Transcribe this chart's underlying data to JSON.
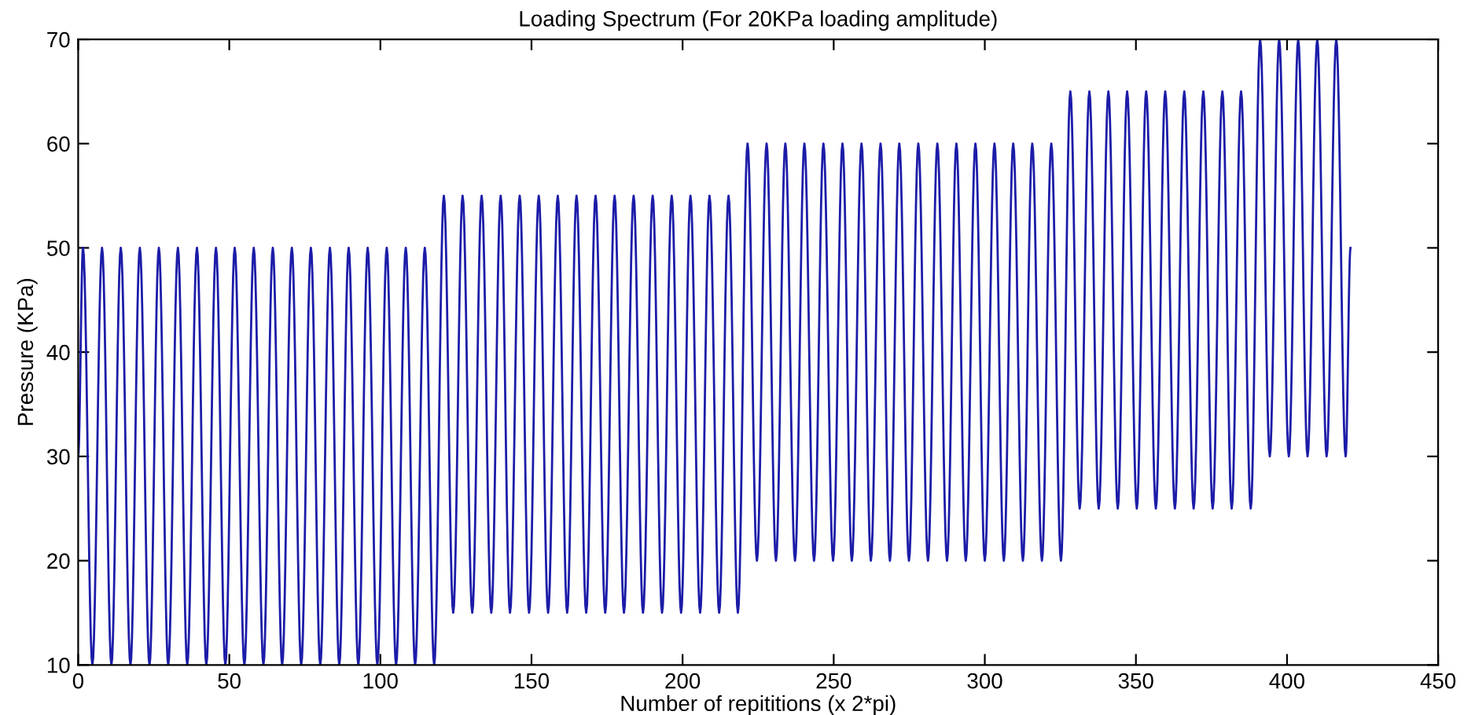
{
  "chart_data": {
    "type": "line",
    "title": "Loading Spectrum (For 20KPa loading amplitude)",
    "xlabel": "Number of repititions (x 2*pi)",
    "ylabel": "Pressure (KPa)",
    "xlim": [
      0,
      450
    ],
    "xticks": [
      0,
      50,
      100,
      150,
      200,
      250,
      300,
      350,
      400,
      450
    ],
    "ylim": [
      10,
      70
    ],
    "yticks": [
      10,
      20,
      30,
      40,
      50,
      60,
      70
    ],
    "grid": false,
    "marker": "none",
    "line_style": "solid",
    "series": [
      {
        "color": "#1c1ca8",
        "x": [
          0,
          1.6,
          4.7,
          7.9,
          11.0,
          14.1,
          17.3,
          20.4,
          23.6,
          26.7,
          29.8,
          33.0,
          36.1,
          39.3,
          42.4,
          45.6,
          48.7,
          51.8,
          55.0,
          58.1,
          61.3,
          64.4,
          67.5,
          70.7,
          73.8,
          77.0,
          80.1,
          83.3,
          86.4,
          89.5,
          92.7,
          95.8,
          99.0,
          102.1,
          105.2,
          108.4,
          111.5,
          114.7,
          117.8,
          121.0,
          124.1,
          127.2,
          130.4,
          133.5,
          136.7,
          139.8,
          142.9,
          146.1,
          149.2,
          152.4,
          155.5,
          158.7,
          161.8,
          164.9,
          168.1,
          171.2,
          174.4,
          177.5,
          180.6,
          183.8,
          186.9,
          190.1,
          193.2,
          196.4,
          199.5,
          202.6,
          205.8,
          208.9,
          212.1,
          215.2,
          218.3,
          221.5,
          224.6,
          227.8,
          230.9,
          234.0,
          237.2,
          240.3,
          243.5,
          246.6,
          249.8,
          252.9,
          256.0,
          259.2,
          262.3,
          265.5,
          268.6,
          271.7,
          274.9,
          278.0,
          281.2,
          284.3,
          287.5,
          290.6,
          293.7,
          296.9,
          300.0,
          303.2,
          306.3,
          309.4,
          312.6,
          315.7,
          318.9,
          322.0,
          325.2,
          328.3,
          331.4,
          334.6,
          337.7,
          340.9,
          344.0,
          347.1,
          350.3,
          353.4,
          356.6,
          359.7,
          362.9,
          366.0,
          369.1,
          372.3,
          375.4,
          378.6,
          381.7,
          384.8,
          388.0,
          391.1,
          394.3,
          397.4,
          400.6,
          403.7,
          406.8,
          410.0,
          413.1,
          416.3,
          419.4,
          421.0
        ],
        "values": [
          30,
          50,
          10,
          50,
          10,
          50,
          10,
          50,
          10,
          50,
          10,
          50,
          10,
          50,
          10,
          50,
          10,
          50,
          10,
          50,
          10,
          50,
          10,
          50,
          10,
          50,
          10,
          50,
          10,
          50,
          10,
          50,
          10,
          50,
          10,
          50,
          10,
          50,
          10,
          55,
          15,
          55,
          15,
          55,
          15,
          55,
          15,
          55,
          15,
          55,
          15,
          55,
          15,
          55,
          15,
          55,
          15,
          55,
          15,
          55,
          15,
          55,
          15,
          55,
          15,
          55,
          15,
          55,
          15,
          55,
          15,
          60,
          20,
          60,
          20,
          60,
          20,
          60,
          20,
          60,
          20,
          60,
          20,
          60,
          20,
          60,
          20,
          60,
          20,
          60,
          20,
          60,
          20,
          60,
          20,
          60,
          20,
          60,
          20,
          60,
          20,
          60,
          20,
          60,
          20,
          65,
          25,
          65,
          25,
          65,
          25,
          65,
          25,
          65,
          25,
          65,
          25,
          65,
          25,
          65,
          25,
          65,
          25,
          65,
          25,
          70,
          30,
          70,
          30,
          70,
          30,
          70,
          30,
          70,
          30,
          50
        ]
      }
    ]
  }
}
